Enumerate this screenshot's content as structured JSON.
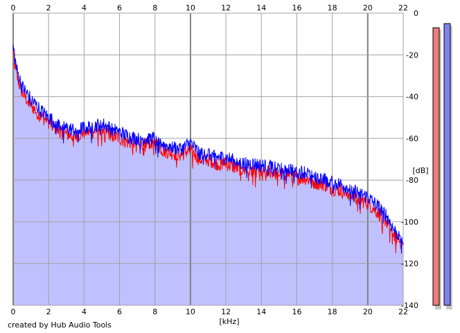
{
  "footer": {
    "credit": "created by Hub Audio Tools"
  },
  "colors": {
    "fill": "#c0c0ff",
    "left_channel": "#ff0000",
    "right_channel": "#0000ff",
    "grid": "#a0a0a0",
    "grid_major": "#808080",
    "meter_left": "#ee7b7b",
    "meter_right": "#8080ee",
    "meter_shadow": "#c8c8c8"
  },
  "chart_data": {
    "type": "line",
    "title": "",
    "xlabel": "[kHz]",
    "ylabel": "[dB]",
    "xlim": [
      0,
      22
    ],
    "ylim": [
      -140,
      0
    ],
    "x_ticks": [
      0,
      2,
      4,
      6,
      8,
      10,
      12,
      14,
      16,
      18,
      20,
      22
    ],
    "y_ticks": [
      0,
      -20,
      -40,
      -60,
      -80,
      -100,
      -120,
      -140
    ],
    "grid": true,
    "legend": "none",
    "x": [
      0,
      0.2,
      0.5,
      1,
      1.5,
      2,
      2.5,
      3,
      3.5,
      4,
      4.5,
      5,
      5.5,
      6,
      6.5,
      7,
      7.5,
      8,
      8.5,
      9,
      9.5,
      10,
      10.5,
      11,
      11.5,
      12,
      12.5,
      13,
      13.5,
      14,
      14.5,
      15,
      15.5,
      16,
      16.5,
      17,
      17.5,
      18,
      18.5,
      19,
      19.5,
      20,
      20.5,
      21,
      21.5,
      22
    ],
    "series": [
      {
        "color": "#ff0000",
        "values": [
          -17,
          -30,
          -38,
          -44,
          -49,
          -52,
          -56,
          -58,
          -59,
          -57,
          -57,
          -55,
          -58,
          -60,
          -62,
          -62,
          -62,
          -62,
          -66,
          -67,
          -68,
          -65,
          -70,
          -70,
          -72,
          -72,
          -74,
          -75,
          -75,
          -76,
          -76,
          -77,
          -77,
          -79,
          -79,
          -81,
          -82,
          -84,
          -85,
          -87,
          -89,
          -91,
          -95,
          -99,
          -106,
          -111
        ]
      },
      {
        "color": "#0000ff",
        "values": [
          -16,
          -27,
          -35,
          -41,
          -46,
          -50,
          -53,
          -55,
          -56,
          -55,
          -54,
          -53,
          -55,
          -57,
          -59,
          -60,
          -60,
          -60,
          -63,
          -64,
          -65,
          -62,
          -67,
          -67,
          -69,
          -69,
          -71,
          -72,
          -72,
          -73,
          -73,
          -74,
          -74,
          -76,
          -76,
          -78,
          -79,
          -81,
          -82,
          -84,
          -86,
          -88,
          -92,
          -96,
          -104,
          -109
        ]
      }
    ],
    "level_meters": [
      {
        "channel": "left",
        "color": "#ee7b7b",
        "value_db": -7
      },
      {
        "channel": "right",
        "color": "#8080ee",
        "value_db": -5
      }
    ]
  }
}
